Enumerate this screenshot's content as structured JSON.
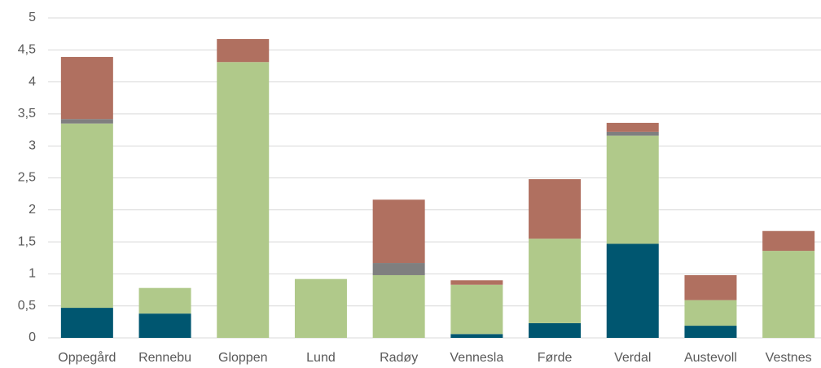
{
  "chart_data": {
    "type": "stacked_bar",
    "categories": [
      "Oppegård",
      "Rennebu",
      "Gloppen",
      "Lund",
      "Radøy",
      "Vennesla",
      "Førde",
      "Verdal",
      "Austevoll",
      "Vestnes"
    ],
    "series": [
      {
        "color": "#005670",
        "values": [
          0.47,
          0.38,
          0,
          0,
          0,
          0.06,
          0.23,
          1.47,
          0.19,
          0
        ]
      },
      {
        "color": "#b0c98a",
        "values": [
          2.88,
          0.4,
          4.31,
          0.92,
          0.98,
          0.77,
          1.32,
          1.69,
          0.4,
          1.36
        ]
      },
      {
        "color": "#7f7f7f",
        "values": [
          0.07,
          0,
          0,
          0,
          0.19,
          0,
          0,
          0.06,
          0,
          0
        ]
      },
      {
        "color": "#b07060",
        "values": [
          0.97,
          0,
          0.36,
          0,
          0.99,
          0.07,
          0.93,
          0.14,
          0.39,
          0.31
        ]
      }
    ],
    "ylim": [
      0,
      5
    ],
    "yticks": [
      0,
      {
        "value": 0.5,
        "label": "0,5"
      },
      1,
      {
        "value": 1.5,
        "label": "1,5"
      },
      2,
      {
        "value": 2.5,
        "label": "2,5"
      },
      3,
      {
        "value": 3.5,
        "label": "3,5"
      },
      4,
      {
        "value": 4.5,
        "label": "4,5"
      },
      5
    ],
    "grid": true
  }
}
